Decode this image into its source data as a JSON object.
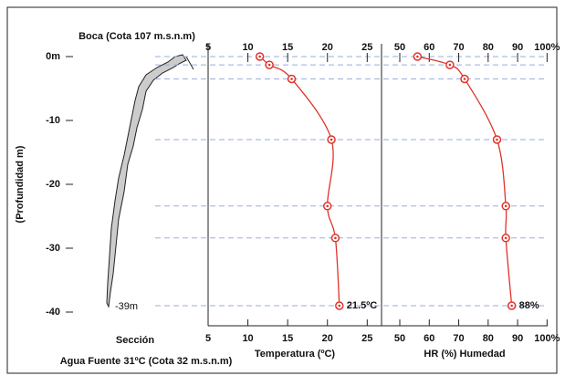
{
  "cave": {
    "mouth_label": "Boca (Cota 107 m.s.n.m)",
    "bottom_label": "-39m",
    "section_label": "Sección",
    "spring_label": "Agua Fuente 31ºC (Cota 32 m.s.n.m)"
  },
  "chart_data": [
    {
      "type": "line",
      "ylabel": "(Profundidad m)",
      "xlabel": "Temperatura (ºC)",
      "color": "#e0332b",
      "x": [
        11.5,
        12.7,
        15.5,
        20.5,
        20,
        21,
        21.5
      ],
      "y": [
        0,
        -1.3,
        -3.5,
        -13,
        -23.4,
        -28.4,
        -39
      ],
      "value_labels": [
        null,
        null,
        null,
        null,
        null,
        null,
        "21.5ºC"
      ],
      "xlim": [
        5,
        26.8
      ],
      "xticks": [
        5,
        10,
        15,
        20,
        25
      ],
      "ylim": [
        2,
        -42
      ],
      "yticks": [
        {
          "value": 0,
          "label": "0m"
        },
        -10,
        -20,
        -30,
        -40
      ]
    },
    {
      "type": "line",
      "xlabel": "HR (%) Humedad",
      "color": "#e0332b",
      "x": [
        56,
        67,
        72,
        83,
        86,
        86,
        88
      ],
      "y": [
        0,
        -1.3,
        -3.5,
        -13,
        -23.4,
        -28.4,
        -39
      ],
      "value_labels": [
        null,
        null,
        null,
        null,
        null,
        null,
        "88%"
      ],
      "xlim": [
        43.8,
        100.2
      ],
      "xticks": [
        50,
        60,
        70,
        80,
        90,
        {
          "value": 100,
          "label": "100%"
        }
      ],
      "ylim": [
        2,
        -42
      ]
    }
  ]
}
